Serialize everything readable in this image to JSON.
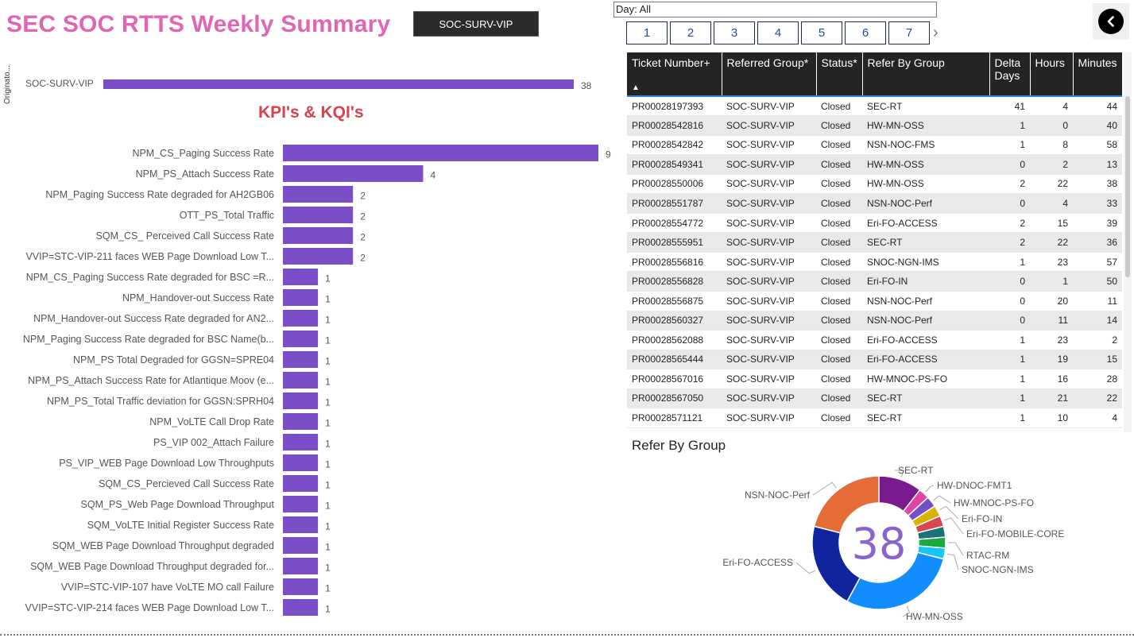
{
  "header": {
    "title": "SEC SOC RTTS Weekly Summary",
    "filter_chip": "SOC-SURV-VIP"
  },
  "originator": {
    "axis_label": "Originato...",
    "category": "SOC-SURV-VIP",
    "value": "38",
    "bar_color": "#7a4ec7"
  },
  "kpi_title": "KPI's & KQI's",
  "chart_data": [
    {
      "type": "bar",
      "orientation": "horizontal",
      "title": "KPI's & KQI's",
      "categories": [
        "NPM_CS_Paging Success Rate",
        "NPM_PS_Attach Success Rate",
        "NPM_Paging Success Rate degraded for AH2GB06",
        "OTT_PS_Total Traffic",
        "SQM_CS_ Perceived Call Success Rate",
        "VVIP=STC-VIP-211 faces WEB Page Download Low T...",
        "NPM_CS_Paging Success Rate degraded for BSC =R...",
        "NPM_Handover-out Success Rate",
        "NPM_Handover-out Success Rate degraded for AN2...",
        "NPM_Paging Success Rate degraded for BSC Name(b...",
        "NPM_PS Total Degraded for GGSN=SPRE04",
        "NPM_PS_Attach Success Rate for Atlantique Moov (e...",
        "NPM_PS_Total Traffic deviation for GGSN:SPRH04",
        "NPM_VoLTE Call Drop Rate",
        "PS_VIP 002_Attach Failure",
        "PS_VIP_WEB Page Download Low Throughputs",
        "SQM_CS_Percieved Call Success Rate",
        "SQM_PS_Web Page Download Throughput",
        "SQM_VoLTE Initial Register Success Rate",
        "SQM_WEB Page Download Throughput degraded",
        "SQM_WEB Page Download Throughput degraded for...",
        "VVIP=STC-VIP-107 have VoLTE MO call Failure",
        "VVIP=STC-VIP-214 faces WEB Page Download Low T..."
      ],
      "values": [
        9,
        4,
        2,
        2,
        2,
        2,
        1,
        1,
        1,
        1,
        1,
        1,
        1,
        1,
        1,
        1,
        1,
        1,
        1,
        1,
        1,
        1,
        1
      ],
      "xlim": [
        0,
        9
      ],
      "color": "#7a4ec7"
    },
    {
      "type": "pie",
      "variant": "donut",
      "title": "Refer By Group",
      "center_label": "38",
      "slices": [
        {
          "name": "SEC-RT",
          "value": 4,
          "color": "#7b1a8f"
        },
        {
          "name": "HW-DNOC-FMT1",
          "value": 1,
          "color": "#e044a7"
        },
        {
          "name": "HW-MNOC-PS-FO",
          "value": 1,
          "color": "#744ec2"
        },
        {
          "name": "Eri-FO-IN",
          "value": 1,
          "color": "#d9b300"
        },
        {
          "name": "Eri-FO-MOBILE-CORE",
          "value": 1,
          "color": "#d64550"
        },
        {
          "name": "",
          "value": 1,
          "color": "#197278"
        },
        {
          "name": "RTAC-RM",
          "value": 1,
          "color": "#1aab40"
        },
        {
          "name": "SNOC-NGN-IMS",
          "value": 1,
          "color": "#15c6f4"
        },
        {
          "name": "HW-MN-OSS",
          "value": 11,
          "color": "#118dff"
        },
        {
          "name": "Eri-FO-ACCESS",
          "value": 8,
          "color": "#12239e"
        },
        {
          "name": "NSN-NOC-Perf",
          "value": 8,
          "color": "#e66c37"
        }
      ]
    }
  ],
  "day_filter": {
    "label": "Day: All",
    "days": [
      "1",
      "2",
      "3",
      "4",
      "5",
      "6",
      "7"
    ],
    "next": "›"
  },
  "table": {
    "columns": [
      "Ticket Number+",
      "Referred Group*",
      "Status*",
      "Refer By Group",
      "Delta Days",
      "Hours",
      "Minutes"
    ],
    "sort_indicator": "▲",
    "rows": [
      [
        "PR00028197393",
        "SOC-SURV-VIP",
        "Closed",
        "SEC-RT",
        "41",
        "4",
        "44"
      ],
      [
        "PR00028542816",
        "SOC-SURV-VIP",
        "Closed",
        "HW-MN-OSS",
        "1",
        "0",
        "40"
      ],
      [
        "PR00028542842",
        "SOC-SURV-VIP",
        "Closed",
        "NSN-NOC-FMS",
        "1",
        "8",
        "58"
      ],
      [
        "PR00028549341",
        "SOC-SURV-VIP",
        "Closed",
        "HW-MN-OSS",
        "0",
        "2",
        "13"
      ],
      [
        "PR00028550006",
        "SOC-SURV-VIP",
        "Closed",
        "HW-MN-OSS",
        "2",
        "22",
        "38"
      ],
      [
        "PR00028551787",
        "SOC-SURV-VIP",
        "Closed",
        "NSN-NOC-Perf",
        "0",
        "4",
        "33"
      ],
      [
        "PR00028554772",
        "SOC-SURV-VIP",
        "Closed",
        "Eri-FO-ACCESS",
        "2",
        "15",
        "39"
      ],
      [
        "PR00028555951",
        "SOC-SURV-VIP",
        "Closed",
        "SEC-RT",
        "2",
        "22",
        "36"
      ],
      [
        "PR00028556816",
        "SOC-SURV-VIP",
        "Closed",
        "SNOC-NGN-IMS",
        "1",
        "23",
        "57"
      ],
      [
        "PR00028556828",
        "SOC-SURV-VIP",
        "Closed",
        "Eri-FO-IN",
        "0",
        "1",
        "50"
      ],
      [
        "PR00028556875",
        "SOC-SURV-VIP",
        "Closed",
        "NSN-NOC-Perf",
        "0",
        "20",
        "11"
      ],
      [
        "PR00028560327",
        "SOC-SURV-VIP",
        "Closed",
        "NSN-NOC-Perf",
        "0",
        "11",
        "14"
      ],
      [
        "PR00028562088",
        "SOC-SURV-VIP",
        "Closed",
        "Eri-FO-ACCESS",
        "1",
        "23",
        "2"
      ],
      [
        "PR00028565444",
        "SOC-SURV-VIP",
        "Closed",
        "Eri-FO-ACCESS",
        "1",
        "19",
        "15"
      ],
      [
        "PR00028567016",
        "SOC-SURV-VIP",
        "Closed",
        "HW-MNOC-PS-FO",
        "1",
        "16",
        "28"
      ],
      [
        "PR00028567050",
        "SOC-SURV-VIP",
        "Closed",
        "SEC-RT",
        "1",
        "21",
        "22"
      ],
      [
        "PR00028571121",
        "SOC-SURV-VIP",
        "Closed",
        "SEC-RT",
        "1",
        "10",
        "4"
      ]
    ]
  },
  "colors": {
    "title": "#e066b5",
    "kpi_title": "#d9414b",
    "header_bg": "#252423",
    "accent": "#2f7fd3"
  },
  "icons": {
    "back": "chevron-left-icon",
    "next": "chevron-right-icon",
    "sort": "sort-up-icon"
  }
}
